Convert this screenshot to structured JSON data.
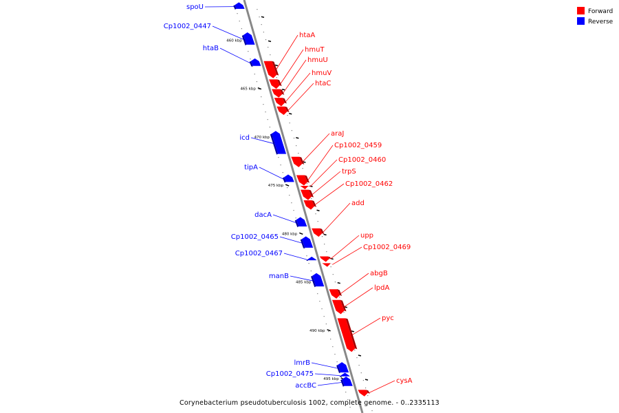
{
  "colors": {
    "forward": "#ff0000",
    "forward_dark": "#a30000",
    "reverse": "#0000ff",
    "reverse_dark": "#0000a0",
    "backbone": "#888888",
    "tick": "#000000"
  },
  "legend": [
    {
      "key": "forward",
      "label": "Forward"
    },
    {
      "key": "reverse",
      "label": "Reverse"
    }
  ],
  "caption": "Corynebacterium pseudotuberculosis 1002, complete genome. - 0..2335113",
  "axis": {
    "start_kbp": 457.2,
    "end_kbp": 497.0,
    "labels": [
      "460 kbp",
      "465 kbp",
      "470 kbp",
      "475 kbp",
      "480 kbp",
      "485 kbp",
      "490 kbp",
      "495 kbp"
    ]
  },
  "genes": [
    {
      "name": "spoU",
      "strand": "reverse",
      "start_kbp": 457.3,
      "end_kbp": 457.9,
      "label_pos": 1
    },
    {
      "name": "Cp1002_0447",
      "strand": "reverse",
      "start_kbp": 460.4,
      "end_kbp": 461.6,
      "label_pos": 2
    },
    {
      "name": "htaB",
      "strand": "reverse",
      "start_kbp": 463.1,
      "end_kbp": 463.8,
      "label_pos": 3
    },
    {
      "name": "htaA",
      "strand": "forward",
      "start_kbp": 463.3,
      "end_kbp": 465.0,
      "label_pos": 4
    },
    {
      "name": "hmuT",
      "strand": "forward",
      "start_kbp": 465.2,
      "end_kbp": 466.1,
      "label_pos": 5
    },
    {
      "name": "hmuU",
      "strand": "forward",
      "start_kbp": 466.2,
      "end_kbp": 467.0,
      "label_pos": 6
    },
    {
      "name": "hmuV",
      "strand": "forward",
      "start_kbp": 467.1,
      "end_kbp": 467.9,
      "label_pos": 7
    },
    {
      "name": "htaC",
      "strand": "forward",
      "start_kbp": 468.0,
      "end_kbp": 468.8,
      "label_pos": 8
    },
    {
      "name": "icd",
      "strand": "reverse",
      "start_kbp": 470.6,
      "end_kbp": 472.9,
      "label_pos": 9
    },
    {
      "name": "araJ",
      "strand": "forward",
      "start_kbp": 473.2,
      "end_kbp": 474.2,
      "label_pos": 10
    },
    {
      "name": "tipA",
      "strand": "reverse",
      "start_kbp": 475.1,
      "end_kbp": 475.8,
      "label_pos": 11
    },
    {
      "name": "Cp1002_0459",
      "strand": "forward",
      "start_kbp": 475.1,
      "end_kbp": 476.1,
      "label_pos": 12
    },
    {
      "name": "Cp1002_0460",
      "strand": "forward",
      "start_kbp": 476.2,
      "end_kbp": 476.4,
      "label_pos": 13
    },
    {
      "name": "trpS",
      "strand": "forward",
      "start_kbp": 476.6,
      "end_kbp": 477.6,
      "label_pos": 14
    },
    {
      "name": "Cp1002_0462",
      "strand": "forward",
      "start_kbp": 477.7,
      "end_kbp": 478.6,
      "label_pos": 15
    },
    {
      "name": "dacA",
      "strand": "reverse",
      "start_kbp": 479.5,
      "end_kbp": 480.4,
      "label_pos": 16
    },
    {
      "name": "add",
      "strand": "forward",
      "start_kbp": 480.6,
      "end_kbp": 481.4,
      "label_pos": 17
    },
    {
      "name": "Cp1002_0465",
      "strand": "reverse",
      "start_kbp": 481.5,
      "end_kbp": 482.6,
      "label_pos": 18
    },
    {
      "name": "Cp1002_0467",
      "strand": "reverse",
      "start_kbp": 483.6,
      "end_kbp": 483.9,
      "label_pos": 19
    },
    {
      "name": "upp",
      "strand": "forward",
      "start_kbp": 483.5,
      "end_kbp": 484.0,
      "label_pos": 20
    },
    {
      "name": "Cp1002_0469",
      "strand": "forward",
      "start_kbp": 484.2,
      "end_kbp": 484.5,
      "label_pos": 21
    },
    {
      "name": "manB",
      "strand": "reverse",
      "start_kbp": 485.3,
      "end_kbp": 486.6,
      "label_pos": 22
    },
    {
      "name": "abgB",
      "strand": "forward",
      "start_kbp": 486.9,
      "end_kbp": 487.8,
      "label_pos": 23
    },
    {
      "name": "lpdA",
      "strand": "forward",
      "start_kbp": 488.0,
      "end_kbp": 489.4,
      "label_pos": 24
    },
    {
      "name": "pyc",
      "strand": "forward",
      "start_kbp": 489.9,
      "end_kbp": 493.3,
      "label_pos": 25
    },
    {
      "name": "lmrB",
      "strand": "reverse",
      "start_kbp": 494.5,
      "end_kbp": 495.5,
      "label_pos": 26
    },
    {
      "name": "Cp1002_0475",
      "strand": "reverse",
      "start_kbp": 495.6,
      "end_kbp": 495.9,
      "label_pos": 27
    },
    {
      "name": "accBC",
      "strand": "reverse",
      "start_kbp": 496.0,
      "end_kbp": 496.9,
      "label_pos": 28
    },
    {
      "name": "cysA",
      "strand": "forward",
      "start_kbp": 497.3,
      "end_kbp": 497.9,
      "label_pos": 29
    }
  ]
}
